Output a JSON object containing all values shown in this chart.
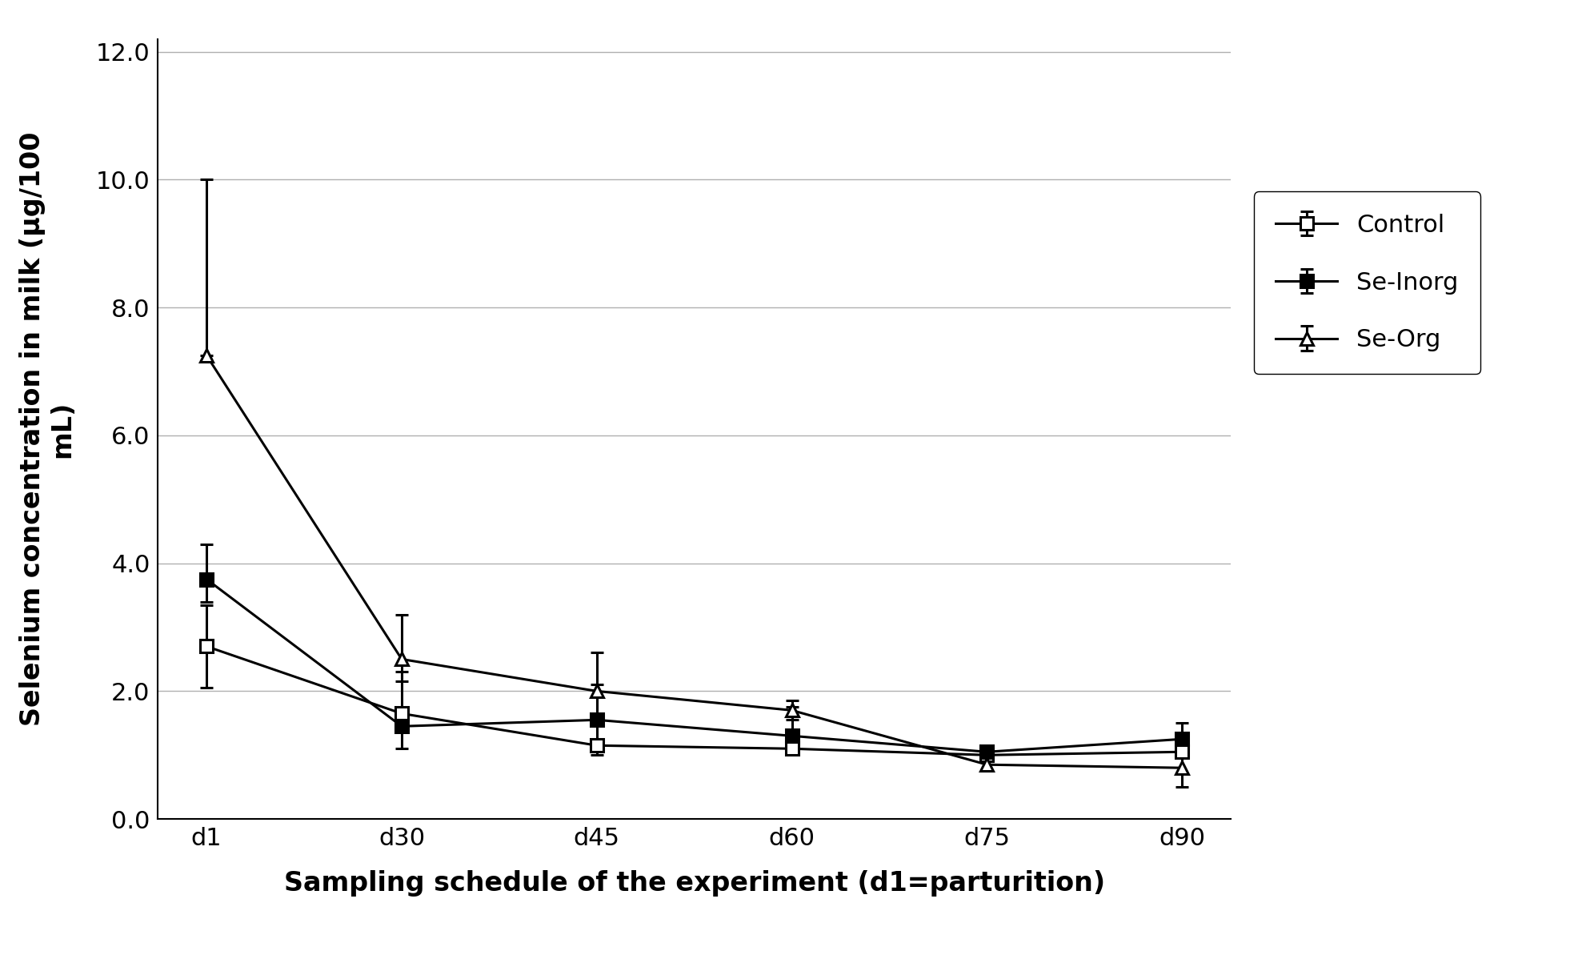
{
  "x_labels": [
    "d1",
    "d30",
    "d45",
    "d60",
    "d75",
    "d90"
  ],
  "x_positions": [
    0,
    1,
    2,
    3,
    4,
    5
  ],
  "control_mean": [
    2.7,
    1.65,
    1.15,
    1.1,
    1.0,
    1.05
  ],
  "control_err_lo": [
    0.65,
    0.0,
    0.0,
    0.0,
    0.0,
    0.0
  ],
  "control_err_hi": [
    0.65,
    0.0,
    0.0,
    0.0,
    0.0,
    0.0
  ],
  "seinorg_mean": [
    3.75,
    1.45,
    1.55,
    1.3,
    1.05,
    1.25
  ],
  "seinorg_err_lo": [
    0.35,
    0.35,
    0.55,
    0.25,
    0.05,
    0.25
  ],
  "seinorg_err_hi": [
    0.55,
    0.85,
    0.55,
    0.45,
    0.05,
    0.25
  ],
  "seorg_mean": [
    7.25,
    2.5,
    2.0,
    1.7,
    0.85,
    0.8
  ],
  "seorg_err_lo": [
    0.0,
    0.35,
    0.45,
    0.15,
    0.1,
    0.3
  ],
  "seorg_err_hi": [
    2.75,
    0.7,
    0.6,
    0.15,
    0.1,
    0.25
  ],
  "ylabel": "Selenium concentration in milk (μg/100\nmL)",
  "xlabel": "Sampling schedule of the experiment (d1=parturition)",
  "ylim": [
    0.0,
    12.2
  ],
  "yticks": [
    0.0,
    2.0,
    4.0,
    6.0,
    8.0,
    10.0,
    12.0
  ],
  "legend_labels": [
    "Control",
    "Se-Inorg",
    "Se-Org"
  ],
  "line_color": "#000000",
  "background_color": "#ffffff",
  "grid_color": "#b0b0b0"
}
